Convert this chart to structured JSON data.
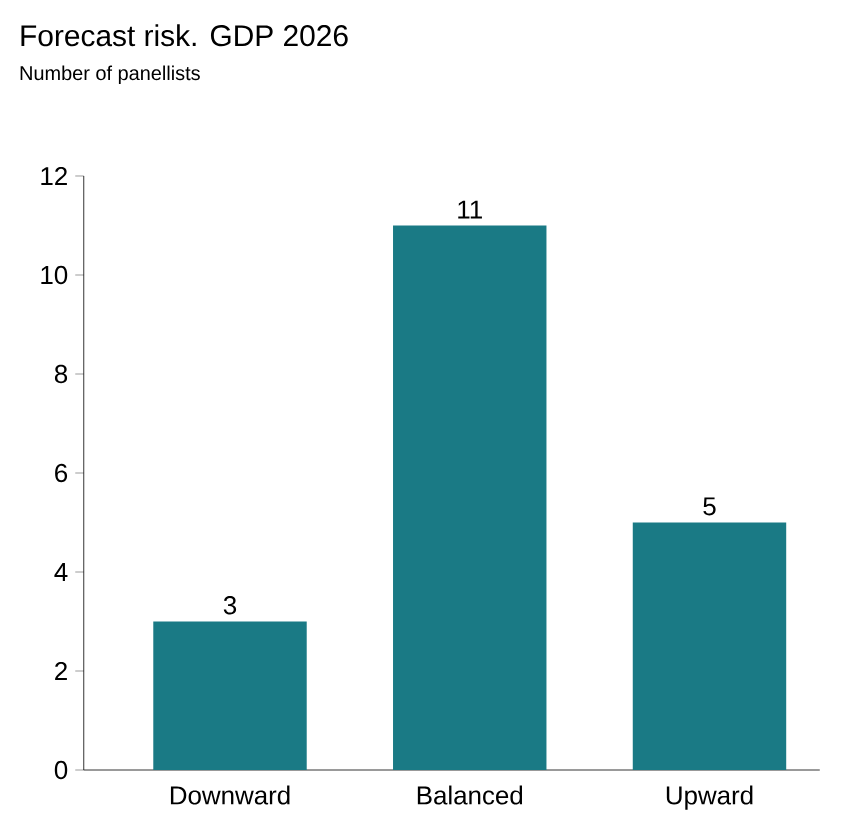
{
  "chart_data": {
    "type": "bar",
    "title": "Forecast risk. GDP 2026",
    "subtitle": "Number of panellists",
    "categories": [
      "Downward",
      "Balanced",
      "Upward"
    ],
    "values": [
      3,
      11,
      5
    ],
    "color": "#1a7a85",
    "ylim": [
      0,
      12
    ],
    "yticks": [
      0,
      2,
      4,
      6,
      8,
      10,
      12
    ],
    "data_labels": true
  }
}
